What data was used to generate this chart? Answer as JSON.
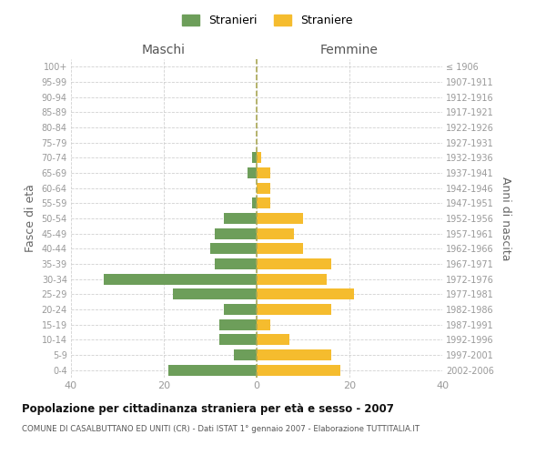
{
  "age_groups_bottom_to_top": [
    "0-4",
    "5-9",
    "10-14",
    "15-19",
    "20-24",
    "25-29",
    "30-34",
    "35-39",
    "40-44",
    "45-49",
    "50-54",
    "55-59",
    "60-64",
    "65-69",
    "70-74",
    "75-79",
    "80-84",
    "85-89",
    "90-94",
    "95-99",
    "100+"
  ],
  "birth_years_bottom_to_top": [
    "2002-2006",
    "1997-2001",
    "1992-1996",
    "1987-1991",
    "1982-1986",
    "1977-1981",
    "1972-1976",
    "1967-1971",
    "1962-1966",
    "1957-1961",
    "1952-1956",
    "1947-1951",
    "1942-1946",
    "1937-1941",
    "1932-1936",
    "1927-1931",
    "1922-1926",
    "1917-1921",
    "1912-1916",
    "1907-1911",
    "≤ 1906"
  ],
  "maschi_bottom_to_top": [
    19,
    5,
    8,
    8,
    7,
    18,
    33,
    9,
    10,
    9,
    7,
    1,
    0,
    2,
    1,
    0,
    0,
    0,
    0,
    0,
    0
  ],
  "femmine_bottom_to_top": [
    18,
    16,
    7,
    3,
    16,
    21,
    15,
    16,
    10,
    8,
    10,
    3,
    3,
    3,
    1,
    0,
    0,
    0,
    0,
    0,
    0
  ],
  "maschi_color": "#6d9e5a",
  "femmine_color": "#f5bc2e",
  "background_color": "#ffffff",
  "grid_color": "#cccccc",
  "title": "Popolazione per cittadinanza straniera per età e sesso - 2007",
  "subtitle": "COMUNE DI CASALBUTTANO ED UNITI (CR) - Dati ISTAT 1° gennaio 2007 - Elaborazione TUTTITALIA.IT",
  "xlabel_left": "Maschi",
  "xlabel_right": "Femmine",
  "ylabel_left": "Fasce di età",
  "ylabel_right": "Anni di nascita",
  "legend_maschi": "Stranieri",
  "legend_femmine": "Straniere",
  "xlim": 40
}
